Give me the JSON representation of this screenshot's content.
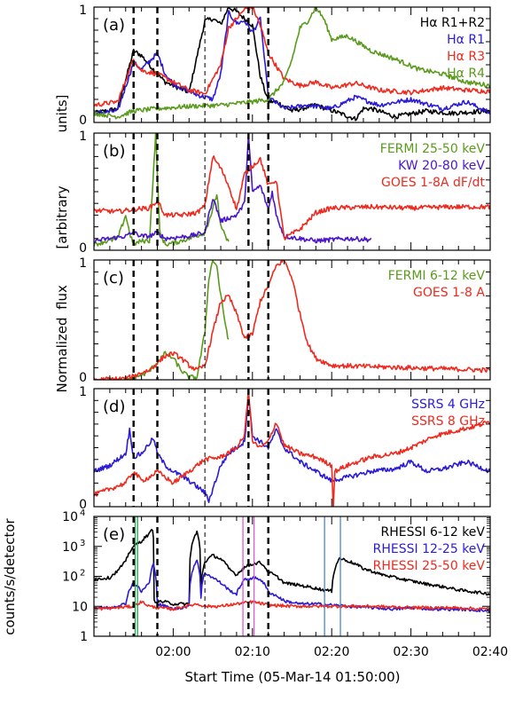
{
  "figure": {
    "xlabel": "Start Time (05-Mar-14 01:50:00)",
    "ylabel_top": "Normalized flux [arbitrary units]",
    "ylabel_top_parts": [
      "units]",
      "[arbitrary",
      "flux",
      "Normalized"
    ],
    "ylabel_bottom": "counts/s/detector",
    "x_ticks": [
      {
        "value": 10,
        "label": "02:00"
      },
      {
        "value": 20,
        "label": "02:10"
      },
      {
        "value": 30,
        "label": "02:20"
      },
      {
        "value": 40,
        "label": "02:30"
      },
      {
        "value": 50,
        "label": "02:40"
      }
    ],
    "xlim": [
      0,
      50
    ],
    "x_units": "minutes after 05-Mar-14 01:50:00"
  },
  "chart_data": [
    {
      "panel": "(a)",
      "type": "line",
      "ylim": [
        0,
        1
      ],
      "y_ticks": [
        "0",
        "1"
      ],
      "series": [
        {
          "name": "Hα R1+R2",
          "color": "#000000",
          "x": [
            0,
            3,
            5,
            6,
            7,
            8,
            9,
            10,
            12,
            14,
            15,
            16,
            17,
            18,
            19,
            20,
            21,
            22,
            23,
            25,
            28,
            31,
            33,
            34,
            35,
            38,
            42,
            45,
            50
          ],
          "y": [
            0.08,
            0.12,
            0.62,
            0.58,
            0.5,
            0.42,
            0.35,
            0.32,
            0.26,
            0.88,
            0.9,
            0.85,
            1.0,
            0.96,
            0.9,
            0.84,
            0.4,
            0.18,
            0.18,
            0.1,
            0.15,
            0.08,
            0.03,
            0.12,
            0.12,
            0.05,
            0.1,
            0.08,
            0.1
          ]
        },
        {
          "name": "Hα R1",
          "color": "#2b1bd6",
          "x": [
            0,
            3,
            5,
            6,
            8,
            9,
            10,
            11,
            13,
            15,
            16,
            17,
            18,
            19,
            20,
            21,
            22,
            24,
            27,
            30,
            33,
            36,
            40,
            44,
            47,
            50
          ],
          "y": [
            0.08,
            0.1,
            0.52,
            0.46,
            0.6,
            0.42,
            0.34,
            0.3,
            0.24,
            0.2,
            0.42,
            0.95,
            0.86,
            0.88,
            0.78,
            0.9,
            0.22,
            0.12,
            0.15,
            0.12,
            0.22,
            0.15,
            0.2,
            0.12,
            0.18,
            0.08
          ]
        },
        {
          "name": "Hα R3",
          "color": "#ee2a1f",
          "x": [
            0,
            3,
            5,
            6,
            8,
            10,
            12,
            14,
            16,
            17,
            18,
            19,
            20,
            21,
            22,
            24,
            26,
            28,
            30,
            33,
            36,
            40,
            44,
            47,
            50
          ],
          "y": [
            0.15,
            0.18,
            0.55,
            0.45,
            0.42,
            0.35,
            0.28,
            0.25,
            0.5,
            0.82,
            0.9,
            0.98,
            1.0,
            0.84,
            0.6,
            0.38,
            0.32,
            0.35,
            0.3,
            0.34,
            0.28,
            0.26,
            0.3,
            0.28,
            0.27
          ]
        },
        {
          "name": "Hα R4",
          "color": "#5a9a1c",
          "x": [
            0,
            3,
            5,
            8,
            12,
            16,
            20,
            22,
            24,
            25,
            26,
            27,
            28,
            29,
            30,
            32,
            35,
            38,
            41,
            44,
            47,
            50
          ],
          "y": [
            0.08,
            0.05,
            0.1,
            0.12,
            0.14,
            0.15,
            0.18,
            0.2,
            0.35,
            0.55,
            0.82,
            0.88,
            1.0,
            0.9,
            0.72,
            0.75,
            0.62,
            0.55,
            0.46,
            0.42,
            0.35,
            0.32
          ]
        }
      ]
    },
    {
      "panel": "(b)",
      "type": "line",
      "ylim": [
        0,
        1
      ],
      "y_ticks": [
        "0",
        "1"
      ],
      "series": [
        {
          "name": "FERMI 25-50 keV",
          "color": "#5a9a1c",
          "x": [
            0,
            3,
            4,
            4.5,
            5,
            6,
            7,
            7.8,
            8.3,
            9,
            10,
            12,
            14,
            15,
            15.5,
            16,
            17
          ],
          "y": [
            0.05,
            0.1,
            0.3,
            0.15,
            0.05,
            0.08,
            0.08,
            1.0,
            0.15,
            0.05,
            0.06,
            0.1,
            0.15,
            0.35,
            0.48,
            0.2,
            0.06
          ]
        },
        {
          "name": "KW 20-80 keV",
          "color": "#4b16c9",
          "x": [
            0,
            2,
            4,
            5,
            6,
            7,
            8,
            9,
            12,
            14,
            15,
            16,
            18,
            19,
            19.5,
            20,
            21,
            22,
            22.5,
            23,
            24,
            26,
            28,
            30,
            32,
            35
          ],
          "y": [
            0.08,
            0.1,
            0.12,
            0.15,
            0.12,
            0.12,
            0.15,
            0.1,
            0.12,
            0.15,
            0.45,
            0.25,
            0.3,
            0.4,
            0.98,
            0.5,
            0.55,
            0.35,
            0.5,
            0.3,
            0.12,
            0.1,
            0.08,
            0.09,
            0.1,
            0.09
          ]
        },
        {
          "name": "GOES 1-8A dF/dt",
          "color": "#ee2a1f",
          "x": [
            0,
            3,
            5,
            7,
            8,
            9,
            11,
            13,
            14,
            15,
            16,
            17,
            18,
            19,
            20,
            21,
            22,
            23,
            24,
            26,
            28,
            30,
            35,
            40,
            45,
            50
          ],
          "y": [
            0.34,
            0.33,
            0.35,
            0.36,
            0.42,
            0.3,
            0.3,
            0.32,
            0.38,
            0.8,
            0.7,
            0.55,
            0.35,
            0.65,
            0.72,
            0.78,
            0.55,
            0.6,
            0.1,
            0.18,
            0.32,
            0.36,
            0.37,
            0.36,
            0.37,
            0.37
          ]
        }
      ]
    },
    {
      "panel": "(c)",
      "type": "line",
      "ylim": [
        0,
        1
      ],
      "y_ticks": [
        "0",
        "1"
      ],
      "series": [
        {
          "name": "FERMI 6-12 keV",
          "color": "#5a9a1c",
          "x": [
            4,
            5,
            6,
            7,
            8,
            9,
            10,
            11,
            12,
            13,
            14,
            14.5,
            15,
            15.5,
            16,
            16.5,
            17
          ],
          "y": [
            0.0,
            0.02,
            0.04,
            0.07,
            0.15,
            0.22,
            0.18,
            0.08,
            0.02,
            0.02,
            0.4,
            0.85,
            1.0,
            0.95,
            0.7,
            0.5,
            0.32
          ]
        },
        {
          "name": "GOES 1-8 A",
          "color": "#ee2a1f",
          "x": [
            0,
            4,
            5,
            6,
            7,
            8,
            9,
            10,
            11,
            12,
            13,
            14,
            15,
            16,
            17,
            18,
            19,
            20,
            21,
            22,
            23,
            24,
            25,
            26,
            27,
            28,
            30,
            35,
            40,
            45,
            50
          ],
          "y": [
            0.0,
            0.01,
            0.03,
            0.06,
            0.08,
            0.14,
            0.2,
            0.22,
            0.18,
            0.12,
            0.08,
            0.12,
            0.4,
            0.65,
            0.7,
            0.55,
            0.35,
            0.38,
            0.66,
            0.78,
            0.95,
            1.0,
            0.85,
            0.55,
            0.3,
            0.18,
            0.12,
            0.11,
            0.1,
            0.09,
            0.08
          ]
        }
      ]
    },
    {
      "panel": "(d)",
      "type": "line",
      "ylim": [
        0,
        1
      ],
      "y_ticks": [
        "0",
        "1"
      ],
      "series": [
        {
          "name": "SSRS 4 GHz",
          "color": "#2b1bd6",
          "x": [
            0,
            2,
            4,
            4.5,
            5,
            6,
            7.5,
            8,
            9,
            10,
            12,
            14,
            14.5,
            15,
            16,
            17,
            19,
            19.5,
            20,
            21,
            22,
            23,
            24,
            26,
            28,
            30,
            32,
            35,
            38,
            40,
            42,
            44,
            47,
            50
          ],
          "y": [
            0.3,
            0.35,
            0.45,
            0.65,
            0.42,
            0.45,
            0.58,
            0.45,
            0.35,
            0.3,
            0.22,
            0.12,
            0.05,
            0.15,
            0.35,
            0.45,
            0.55,
            0.95,
            0.6,
            0.55,
            0.5,
            0.65,
            0.5,
            0.38,
            0.3,
            0.22,
            0.25,
            0.3,
            0.32,
            0.38,
            0.3,
            0.32,
            0.38,
            0.3
          ]
        },
        {
          "name": "SSRS 8 GHz",
          "color": "#ee2a1f",
          "x": [
            0,
            2,
            4,
            5,
            6,
            7,
            8,
            9,
            10,
            12,
            14,
            16,
            18,
            19,
            19.5,
            20,
            21,
            22,
            23,
            24,
            26,
            28,
            30,
            30.2,
            30.4,
            32,
            35,
            38,
            40,
            43,
            46,
            48,
            50
          ],
          "y": [
            0.1,
            0.15,
            0.2,
            0.3,
            0.22,
            0.25,
            0.3,
            0.25,
            0.2,
            0.3,
            0.4,
            0.42,
            0.5,
            0.6,
            1.0,
            0.55,
            0.5,
            0.55,
            0.72,
            0.52,
            0.45,
            0.42,
            0.35,
            0.0,
            0.3,
            0.35,
            0.42,
            0.45,
            0.5,
            0.6,
            0.65,
            0.68,
            0.72
          ]
        }
      ]
    },
    {
      "panel": "(e)",
      "type": "line",
      "yscale": "log",
      "ylim": [
        1,
        10000
      ],
      "y_ticks": [
        "1",
        "10",
        "10^2",
        "10^3",
        "10^4"
      ],
      "series": [
        {
          "name": "RHESSI 6-12 keV",
          "color": "#000000",
          "x": [
            0,
            2,
            3,
            4,
            5,
            6,
            7,
            7.4,
            7.6,
            9,
            10,
            12,
            13,
            13.5,
            14,
            15,
            16,
            17,
            18,
            19,
            20,
            21,
            22,
            24,
            26,
            28,
            29,
            30,
            31,
            32,
            34,
            36,
            38,
            40,
            42,
            44,
            46,
            48,
            50
          ],
          "y": [
            80,
            90,
            150,
            300,
            1000,
            1500,
            2600,
            3800,
            15,
            14,
            12,
            12,
            3000,
            35,
            300,
            500,
            380,
            180,
            110,
            200,
            260,
            290,
            140,
            60,
            50,
            40,
            35,
            32,
            400,
            330,
            180,
            120,
            90,
            70,
            55,
            45,
            35,
            30,
            26
          ]
        },
        {
          "name": "RHESSI 12-25 keV",
          "color": "#2b1bd6",
          "x": [
            0,
            2,
            4,
            5,
            6,
            7,
            7.5,
            8,
            10,
            12,
            13,
            13.5,
            14,
            15,
            16,
            17,
            18,
            19,
            20,
            21,
            22,
            24,
            26,
            28,
            30,
            32,
            35,
            38,
            40,
            43,
            46,
            50
          ],
          "y": [
            9,
            9,
            12,
            60,
            30,
            60,
            250,
            12,
            8,
            10,
            350,
            20,
            130,
            90,
            60,
            35,
            25,
            75,
            90,
            80,
            30,
            15,
            12,
            12,
            11,
            10,
            9,
            8,
            9,
            8,
            8,
            7
          ]
        },
        {
          "name": "RHESSI 25-50 keV",
          "color": "#ee2a1f",
          "x": [
            0,
            3,
            5,
            6,
            7,
            8,
            10,
            13,
            14,
            16,
            18,
            20,
            22,
            25,
            30,
            35,
            40,
            45,
            50
          ],
          "y": [
            8,
            9,
            10,
            14,
            10,
            9,
            8,
            12,
            10,
            10,
            12,
            14,
            11,
            10,
            10,
            10,
            9,
            9,
            8
          ]
        }
      ]
    }
  ],
  "dashed_markers_min": [
    5,
    8,
    14,
    19.5,
    22
  ],
  "thin_dashed_marker_min": 14,
  "vertical_lines_panel_e": [
    {
      "x": 5.2,
      "color": "#2e9a55"
    },
    {
      "x": 5.5,
      "color": "#2e9a55"
    },
    {
      "x": 18.8,
      "color": "#d85acd"
    },
    {
      "x": 20.2,
      "color": "#d85acd"
    },
    {
      "x": 29.1,
      "color": "#4a86c8"
    },
    {
      "x": 31.1,
      "color": "#4a86c8"
    }
  ],
  "legends": [
    {
      "panel": 0,
      "entries": [
        {
          "text": "Hα R1+R2",
          "color": "#000000"
        },
        {
          "text": "Hα R1",
          "color": "#2b1bd6"
        },
        {
          "text": "Hα R3",
          "color": "#ee2a1f"
        },
        {
          "text": "Hα R4",
          "color": "#5a9a1c"
        }
      ]
    },
    {
      "panel": 1,
      "entries": [
        {
          "text": "FERMI 25-50 keV",
          "color": "#5a9a1c"
        },
        {
          "text": "KW 20-80 keV",
          "color": "#4b16c9"
        },
        {
          "text": "GOES 1-8A dF/dt",
          "color": "#ee2a1f"
        }
      ]
    },
    {
      "panel": 2,
      "entries": [
        {
          "text": "FERMI 6-12 keV",
          "color": "#5a9a1c"
        },
        {
          "text": "GOES 1-8 A",
          "color": "#ee2a1f"
        }
      ]
    },
    {
      "panel": 3,
      "entries": [
        {
          "text": "SSRS 4 GHz",
          "color": "#2b1bd6"
        },
        {
          "text": "SSRS 8 GHz",
          "color": "#ee2a1f"
        }
      ]
    },
    {
      "panel": 4,
      "entries": [
        {
          "text": "RHESSI 6-12 keV",
          "color": "#000000"
        },
        {
          "text": "RHESSI 12-25 keV",
          "color": "#2b1bd6"
        },
        {
          "text": "RHESSI 25-50 keV",
          "color": "#ee2a1f"
        }
      ]
    }
  ]
}
